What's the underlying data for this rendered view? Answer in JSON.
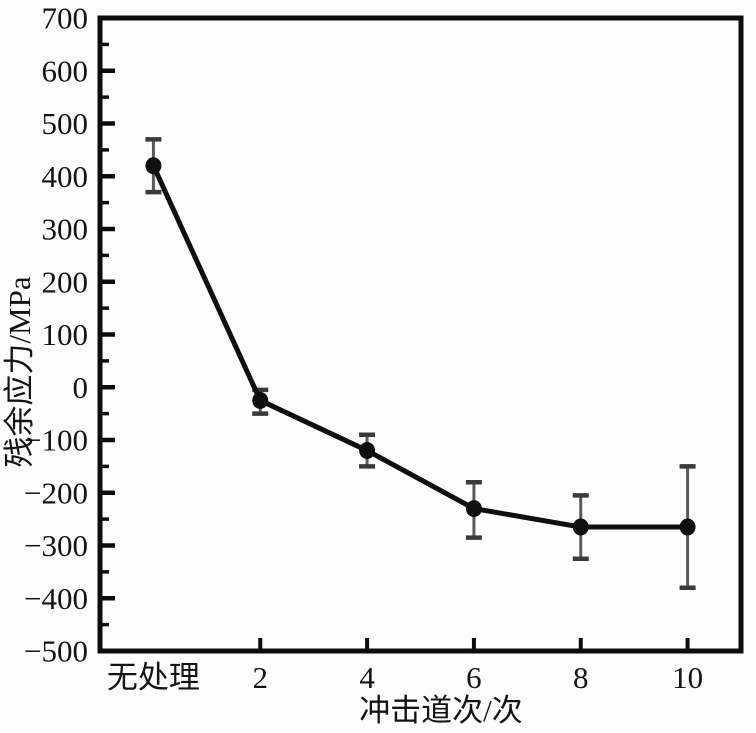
{
  "figure": {
    "background": "#fdfdfd",
    "axis_color": "#0d0d0d",
    "text_color": "#141414",
    "line_color": "#0f0f0f",
    "marker_color": "#0f0f0f",
    "error_stem_color": "#5a5a5a",
    "error_cap_color": "#3a3a3a"
  },
  "chart_data": {
    "type": "line",
    "title": "",
    "xlabel": "冲击道次/次",
    "ylabel": "残余应力/MPa",
    "categories": [
      "无处理",
      "2",
      "4",
      "6",
      "8",
      "10"
    ],
    "series": [
      {
        "name": "残余应力",
        "values": [
          420,
          -25,
          -120,
          -230,
          -265,
          -265
        ],
        "error_high": [
          470,
          -5,
          -90,
          -180,
          -205,
          -150
        ],
        "error_low": [
          370,
          -50,
          -150,
          -285,
          -325,
          -380
        ]
      }
    ],
    "ylim": [
      -500,
      700
    ],
    "y_major_step": 100,
    "y_minor_step": 50,
    "y_tick_labels": [
      "700",
      "600",
      "500",
      "400",
      "300",
      "200",
      "100",
      "0",
      "−100",
      "−200",
      "−300",
      "−400",
      "−500"
    ],
    "x_ticked_categories": [
      "2",
      "4",
      "6",
      "8",
      "10"
    ],
    "grid": false,
    "legend": null,
    "marker": "filled-circle",
    "frame": "box",
    "tick_direction": "in"
  }
}
